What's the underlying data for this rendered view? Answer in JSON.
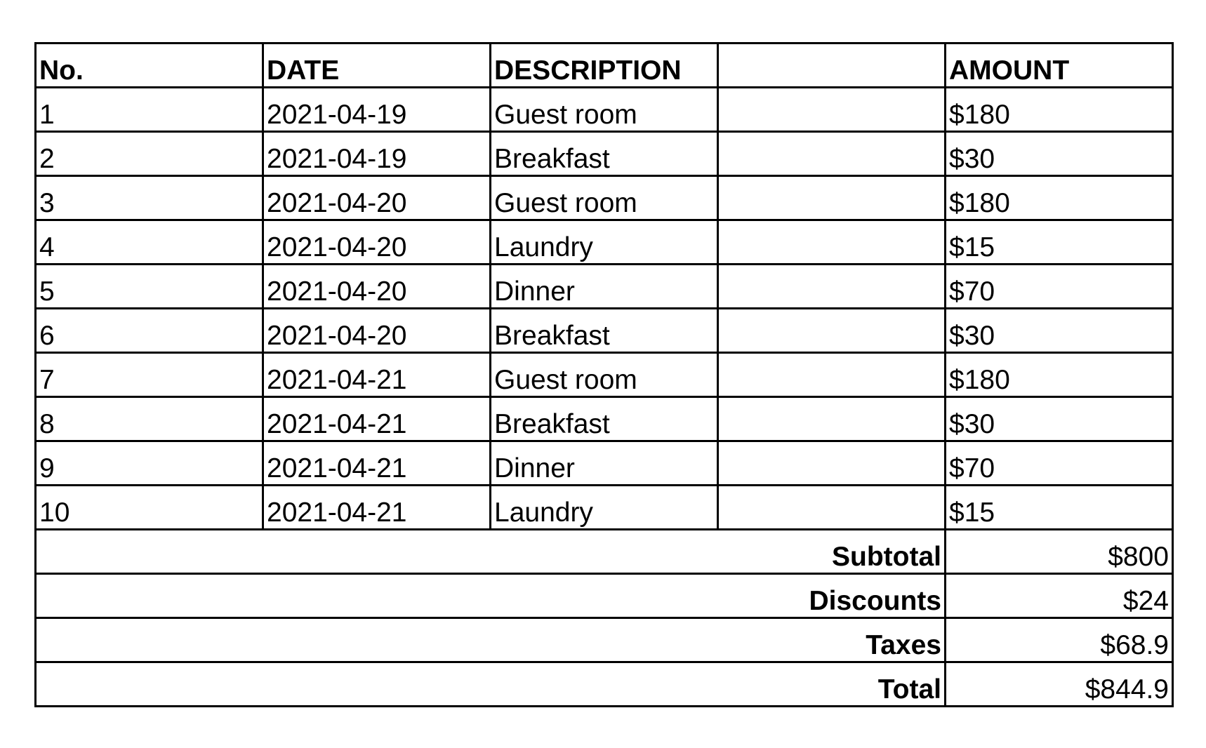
{
  "headers": [
    "No.",
    "DATE",
    "DESCRIPTION",
    "",
    "AMOUNT"
  ],
  "rows": [
    {
      "no": "1",
      "date": "2021-04-19",
      "description": "Guest room",
      "amount": "$180"
    },
    {
      "no": "2",
      "date": "2021-04-19",
      "description": "Breakfast",
      "amount": "$30"
    },
    {
      "no": "3",
      "date": "2021-04-20",
      "description": "Guest room",
      "amount": "$180"
    },
    {
      "no": "4",
      "date": "2021-04-20",
      "description": "Laundry",
      "amount": "$15"
    },
    {
      "no": "5",
      "date": "2021-04-20",
      "description": "Dinner",
      "amount": "$70"
    },
    {
      "no": "6",
      "date": "2021-04-20",
      "description": "Breakfast",
      "amount": "$30"
    },
    {
      "no": "7",
      "date": "2021-04-21",
      "description": "Guest room",
      "amount": "$180"
    },
    {
      "no": "8",
      "date": "2021-04-21",
      "description": "Breakfast",
      "amount": "$30"
    },
    {
      "no": "9",
      "date": "2021-04-21",
      "description": "Dinner",
      "amount": "$70"
    },
    {
      "no": "10",
      "date": "2021-04-21",
      "description": "Laundry",
      "amount": "$15"
    }
  ],
  "summary": [
    {
      "label": "Subtotal",
      "value": "$800"
    },
    {
      "label": "Discounts",
      "value": "$24"
    },
    {
      "label": "Taxes",
      "value": "$68.9"
    },
    {
      "label": "Total",
      "value": "$844.9"
    }
  ]
}
